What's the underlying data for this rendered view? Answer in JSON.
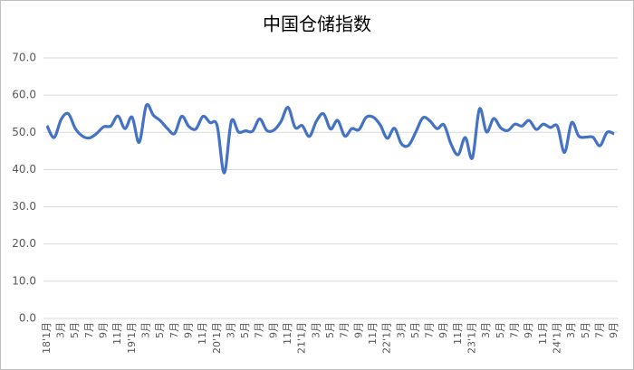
{
  "chart_data": {
    "type": "line",
    "title": "中国仓储指数",
    "categories": [
      "18'1月",
      null,
      "3月",
      null,
      "5月",
      null,
      "7月",
      null,
      "9月",
      null,
      "11月",
      null,
      "19'1月",
      null,
      "3月",
      null,
      "5月",
      null,
      "7月",
      null,
      "9月",
      null,
      "11月",
      null,
      "20'1月",
      null,
      "3月",
      null,
      "5月",
      null,
      "7月",
      null,
      "9月",
      null,
      "11月",
      null,
      "21'1月",
      null,
      "3月",
      null,
      "5月",
      null,
      "7月",
      null,
      "9月",
      null,
      "11月",
      null,
      "22'1月",
      null,
      "3月",
      null,
      "5月",
      null,
      "7月",
      null,
      "9月",
      null,
      "11月",
      null,
      "23'1月",
      null,
      "3月",
      null,
      "5月",
      null,
      "7月",
      null,
      "9月",
      null,
      "11月",
      null,
      "24'1月",
      null,
      "3月",
      null,
      "5月",
      null,
      "7月",
      null,
      "9月"
    ],
    "values": [
      51.8,
      48.6,
      53.5,
      55.0,
      51.0,
      49.0,
      48.5,
      49.7,
      51.5,
      51.7,
      54.4,
      51.0,
      54.1,
      47.3,
      57.2,
      54.6,
      53.1,
      51.0,
      49.7,
      54.3,
      51.6,
      50.9,
      54.3,
      52.6,
      51.8,
      39.1,
      53.0,
      50.1,
      50.4,
      50.3,
      53.6,
      50.5,
      50.6,
      52.9,
      56.7,
      51.3,
      51.8,
      48.9,
      53.0,
      55.0,
      50.9,
      53.2,
      49.0,
      51.0,
      50.7,
      54.0,
      54.1,
      52.0,
      48.4,
      51.1,
      46.9,
      46.5,
      50.0,
      53.9,
      53.1,
      51.0,
      52.0,
      46.8,
      44.0,
      48.6,
      43.1,
      56.3,
      50.1,
      53.7,
      51.2,
      50.5,
      52.2,
      51.7,
      53.2,
      50.8,
      52.2,
      51.3,
      51.6,
      44.6,
      52.6,
      49.0,
      48.7,
      48.7,
      46.4,
      50.0,
      49.6
    ],
    "color": "#4472c4",
    "ylim": [
      0,
      70
    ],
    "yticks": [
      {
        "value": 0,
        "label": "0.0"
      },
      {
        "value": 10,
        "label": "10.0"
      },
      {
        "value": 20,
        "label": "20.0"
      },
      {
        "value": 30,
        "label": "30.0"
      },
      {
        "value": 40,
        "label": "40.0"
      },
      {
        "value": 50,
        "label": "50.0"
      },
      {
        "value": 60,
        "label": "60.0"
      },
      {
        "value": 70,
        "label": "70.0"
      }
    ],
    "grid": true
  }
}
